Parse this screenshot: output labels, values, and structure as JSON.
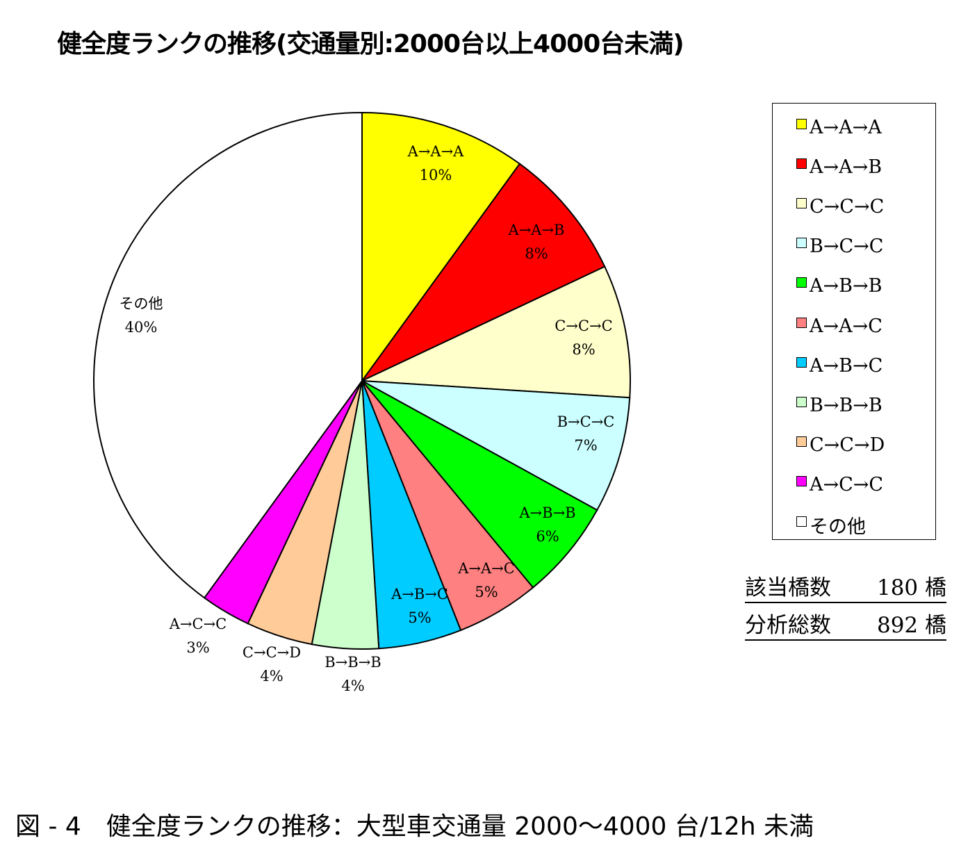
{
  "chart_data": {
    "type": "pie",
    "title": "健全度ランクの推移(交通量別:2000台以上4000台未満)",
    "start": "top",
    "direction": "clockwise",
    "legend_position": "right",
    "slices": [
      {
        "name": "A→A→A",
        "value": 10,
        "label": "10%",
        "color": "#FFFF00"
      },
      {
        "name": "A→A→B",
        "value": 8,
        "label": "8%",
        "color": "#FF0000"
      },
      {
        "name": "C→C→C",
        "value": 8,
        "label": "8%",
        "color": "#FFFFCC"
      },
      {
        "name": "B→C→C",
        "value": 7,
        "label": "7%",
        "color": "#CCFFFF"
      },
      {
        "name": "A→B→B",
        "value": 6,
        "label": "6%",
        "color": "#00FF00"
      },
      {
        "name": "A→A→C",
        "value": 5,
        "label": "5%",
        "color": "#FF8080"
      },
      {
        "name": "A→B→C",
        "value": 5,
        "label": "5%",
        "color": "#00CCFF"
      },
      {
        "name": "B→B→B",
        "value": 4,
        "label": "4%",
        "color": "#CCFFCC"
      },
      {
        "name": "C→C→D",
        "value": 4,
        "label": "4%",
        "color": "#FFCC99"
      },
      {
        "name": "A→C→C",
        "value": 3,
        "label": "3%",
        "color": "#FF00FF"
      },
      {
        "name": "その他",
        "value": 40,
        "label": "40%",
        "color": "#FFFFFF"
      }
    ]
  },
  "counts": {
    "applicable_label": "該当橋数",
    "applicable_value": "180 橋",
    "total_label": "分析総数",
    "total_value": "892 橋"
  },
  "caption": "図 - 4　健全度ランクの推移：大型車交通量 2000〜4000 台/12h 未満"
}
